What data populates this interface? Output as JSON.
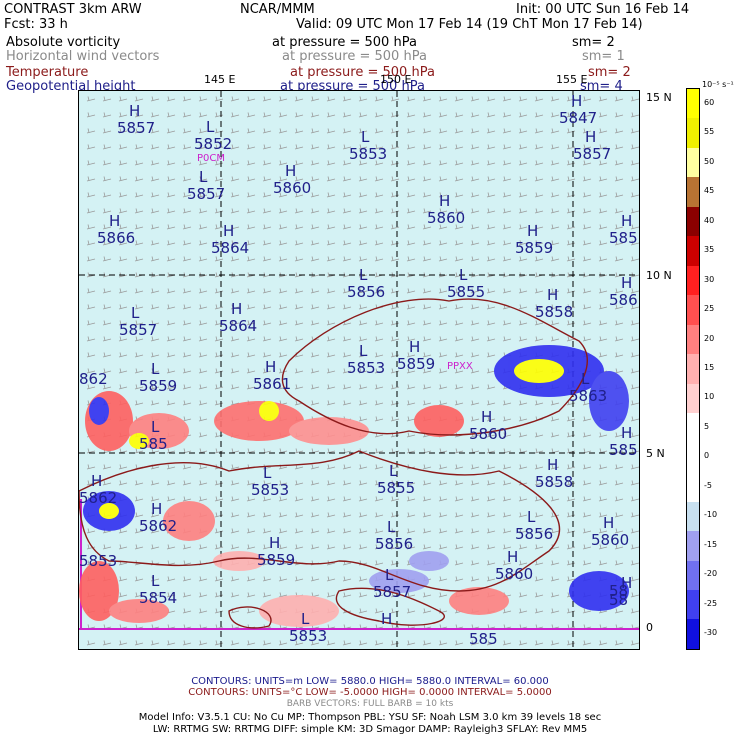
{
  "header": {
    "model": "CONTRAST   3km ARW",
    "center": "NCAR/MMM",
    "init": "Init: 00 UTC Sun 16 Feb 14",
    "fcst": "Fcst:     33 h",
    "valid": "Valid: 09 UTC Mon 17 Feb 14 (19 ChT Mon 17 Feb 14)"
  },
  "fields": [
    {
      "name": "Absolute vorticity",
      "level": "at pressure =   500 hPa",
      "sm": "sm= 2",
      "color": "#000000"
    },
    {
      "name": "Horizontal wind vectors",
      "level": "at pressure =   500 hPa",
      "sm": "sm= 1",
      "color": "#8a8a8a"
    },
    {
      "name": "Temperature",
      "level": "at pressure =   500 hPa",
      "sm": "sm= 2",
      "color": "#8b1a1a"
    },
    {
      "name": "Geopotential height",
      "level": "at pressure =   500 hPa",
      "sm": "sm= 4",
      "color": "#20208a"
    }
  ],
  "lon_labels": [
    "145 E",
    "150 E",
    "155 E"
  ],
  "lat_labels": [
    "15 N",
    "10 N",
    "5 N",
    "0"
  ],
  "map_labels": [
    {
      "text": "P0CM",
      "color": "#cc22cc"
    },
    {
      "text": "PPXX",
      "color": "#cc22cc"
    }
  ],
  "centers": [
    {
      "t": "H",
      "v": "5857"
    },
    {
      "t": "L",
      "v": "5852"
    },
    {
      "t": "L",
      "v": "5853"
    },
    {
      "t": "H",
      "v": "5857"
    },
    {
      "t": "H",
      "v": "5847"
    },
    {
      "t": "L",
      "v": "5857"
    },
    {
      "t": "H",
      "v": "5860"
    },
    {
      "t": "H",
      "v": "5860"
    },
    {
      "t": "H",
      "v": "5866"
    },
    {
      "t": "H",
      "v": "5864"
    },
    {
      "t": "H",
      "v": "5859"
    },
    {
      "t": "H",
      "v": "585"
    },
    {
      "t": "L",
      "v": "5856"
    },
    {
      "t": "L",
      "v": "5855"
    },
    {
      "t": "H",
      "v": "5858"
    },
    {
      "t": "H",
      "v": "586"
    },
    {
      "t": "L",
      "v": "5857"
    },
    {
      "t": "H",
      "v": "5864"
    },
    {
      "t": "L",
      "v": "5853"
    },
    {
      "t": "H",
      "v": "5859"
    },
    {
      "t": "L",
      "v": "5859"
    },
    {
      "t": "H",
      "v": "5861"
    },
    {
      "t": "",
      "v": "862"
    },
    {
      "t": "L",
      "v": "5863"
    },
    {
      "t": "H",
      "v": "5860"
    },
    {
      "t": "L",
      "v": "585"
    },
    {
      "t": "H",
      "v": "585"
    },
    {
      "t": "H",
      "v": "5862"
    },
    {
      "t": "L",
      "v": "5853"
    },
    {
      "t": "L",
      "v": "5855"
    },
    {
      "t": "H",
      "v": "5858"
    },
    {
      "t": "H",
      "v": "5862"
    },
    {
      "t": "L",
      "v": "5856"
    },
    {
      "t": "L",
      "v": "5856"
    },
    {
      "t": "H",
      "v": "5860"
    },
    {
      "t": "H",
      "v": "5859"
    },
    {
      "t": "L",
      "v": "5854"
    },
    {
      "t": "L",
      "v": "5857"
    },
    {
      "t": "H",
      "v": "5860"
    },
    {
      "t": "H",
      "v": "58"
    },
    {
      "t": "L",
      "v": "5853"
    },
    {
      "t": "H",
      "v": ""
    },
    {
      "t": "",
      "v": "5853"
    },
    {
      "t": "",
      "v": "58"
    },
    {
      "t": "",
      "v": "585"
    }
  ],
  "colorbar": {
    "unit": "10⁻⁵ s⁻¹",
    "labels": [
      "60",
      "55",
      "50",
      "45",
      "40",
      "35",
      "30",
      "25",
      "20",
      "15",
      "10",
      "5",
      "0",
      "-5",
      "-10",
      "-15",
      "-20",
      "-25",
      "-30"
    ],
    "colors": [
      "#ffff00",
      "#f0f000",
      "#ffffa0",
      "#b87333",
      "#8b0000",
      "#cc0000",
      "#ff2020",
      "#ff5050",
      "#ff8080",
      "#ffb0b0",
      "#ffd0d0",
      "#ffffff",
      "#ffffff",
      "#ffffff",
      "#c8e0f0",
      "#a0a0f0",
      "#7070f0",
      "#4040f0",
      "#1010e0"
    ]
  },
  "footer": {
    "contours1": "CONTOURS:  UNITS=m  LOW=  5880.0          HIGH=  5880.0          INTERVAL=   60.000",
    "contours2": "CONTOURS:  UNITS=°C  LOW=  -5.0000          HIGH=  0.0000          INTERVAL=    5.0000",
    "barb": "BARB VECTORS:  FULL BARB = 10 kts",
    "model1": "Model Info: V3.5.1     CU: No Cu     MP: Thompson     PBL: YSU     SF: Noah LSM     3.0 km   39 levels   18 sec",
    "model2": "LW: RRTMG     SW: RRTMG   DIFF: simple KM: 3D Smagor DAMP: Rayleigh3   SFLAY: Rev MM5"
  }
}
